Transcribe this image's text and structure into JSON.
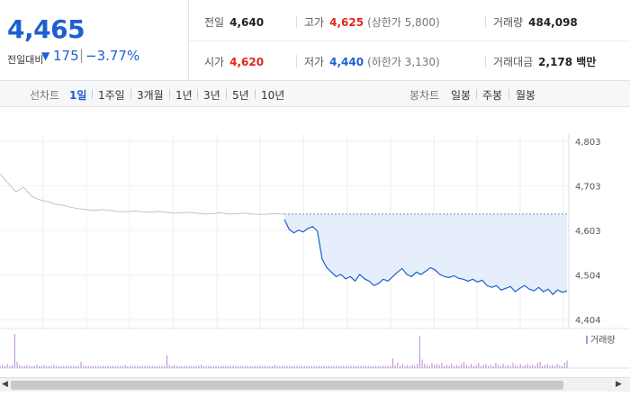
{
  "quote": {
    "price": "4,465",
    "change_label": "전일대비",
    "change_direction_icon": "triangle-down-icon",
    "change_value": "175",
    "change_percent": "−3.77%"
  },
  "stats": {
    "prev_close": {
      "label": "전일",
      "value": "4,640"
    },
    "high": {
      "label": "고가",
      "value": "4,625",
      "sub": "(상한가 5,800)"
    },
    "volume": {
      "label": "거래량",
      "value": "484,098"
    },
    "open": {
      "label": "시가",
      "value": "4,620"
    },
    "low": {
      "label": "저가",
      "value": "4,440",
      "sub": "(하한가 3,130)"
    },
    "trade_amount": {
      "label": "거래대금",
      "value": "2,178 백만"
    }
  },
  "period_bar": {
    "line_chart_label": "선차트",
    "line_periods": [
      "1일",
      "1주일",
      "3개월",
      "1년",
      "3년",
      "5년",
      "10년"
    ],
    "active_period": "1일",
    "candle_chart_label": "봉차트",
    "candle_periods": [
      "일봉",
      "주봉",
      "월봉"
    ]
  },
  "colors": {
    "up": "#e0281c",
    "down": "#1d5fd1",
    "prev_day_line": "#c4c4c4",
    "fill": "#e6eefb",
    "volume_bar": "#b48ad9"
  },
  "chart_data": {
    "type": "line",
    "y_ticks": [
      "4,803",
      "4,703",
      "4,603",
      "4,504",
      "4,404"
    ],
    "ylim": [
      4404,
      4803
    ],
    "reference_price": 4640,
    "series": [
      {
        "values": [
          4730,
          4710,
          4690,
          4700,
          4680,
          4672,
          4668,
          4662,
          4660,
          4655,
          4652,
          4650,
          4648,
          4650,
          4648,
          4646,
          4645,
          4647,
          4645,
          4644,
          4646,
          4644,
          4642,
          4643,
          4644,
          4642,
          4640,
          4641,
          4643,
          4640,
          4641,
          4642,
          4640,
          4639,
          4640,
          4641,
          4640
        ]
      },
      {
        "values": [
          4628,
          4606,
          4598,
          4604,
          4600,
          4608,
          4612,
          4602,
          4540,
          4520,
          4510,
          4500,
          4505,
          4495,
          4500,
          4490,
          4505,
          4495,
          4490,
          4480,
          4485,
          4494,
          4490,
          4500,
          4510,
          4518,
          4505,
          4500,
          4510,
          4505,
          4512,
          4520,
          4515,
          4505,
          4500,
          4498,
          4502,
          4496,
          4494,
          4490,
          4494,
          4488,
          4492,
          4480,
          4476,
          4480,
          4470,
          4474,
          4478,
          4466,
          4474,
          4480,
          4472,
          4468,
          4476,
          4466,
          4472,
          4460,
          4470,
          4465,
          4468
        ]
      }
    ],
    "volume_legend": "거래량",
    "volume_values": [
      2,
      3,
      2,
      4,
      2,
      3,
      32,
      6,
      3,
      2,
      2,
      3,
      2,
      2,
      2,
      3,
      2,
      2,
      3,
      2,
      2,
      2,
      3,
      2,
      2,
      2,
      2,
      2,
      2,
      2,
      2,
      2,
      2,
      6,
      2,
      2,
      2,
      2,
      2,
      2,
      2,
      2,
      2,
      2,
      2,
      2,
      2,
      2,
      2,
      2,
      2,
      3,
      2,
      2,
      2,
      2,
      2,
      2,
      2,
      2,
      2,
      2,
      2,
      2,
      2,
      2,
      2,
      2,
      12,
      3,
      2,
      3,
      2,
      2,
      2,
      2,
      2,
      2,
      2,
      2,
      2,
      2,
      3,
      2,
      2,
      2,
      2,
      2,
      2,
      2,
      2,
      2,
      2,
      2,
      2,
      2,
      2,
      2,
      2,
      2,
      2,
      2,
      2,
      2,
      2,
      2,
      2,
      2,
      2,
      2,
      2,
      2,
      3,
      2,
      2,
      2,
      2,
      2,
      2,
      2,
      2,
      2,
      2,
      2,
      2,
      2,
      2,
      2,
      2,
      2,
      2,
      2,
      2,
      2,
      2,
      2,
      2,
      2,
      2,
      2,
      2,
      2,
      2,
      2,
      2,
      2,
      2,
      2,
      2,
      2,
      2,
      2,
      2,
      2,
      2,
      2,
      2,
      2,
      2,
      2,
      9,
      3,
      5,
      2,
      4,
      2,
      3,
      2,
      3,
      2,
      4,
      30,
      8,
      4,
      3,
      2,
      5,
      3,
      4,
      3,
      5,
      2,
      3,
      2,
      4,
      2,
      3,
      2,
      4,
      6,
      3,
      2,
      4,
      2,
      3,
      5,
      2,
      3,
      4,
      2,
      3,
      2,
      5,
      3,
      2,
      4,
      2,
      3,
      2,
      5,
      3,
      2,
      4,
      2,
      3,
      4,
      2,
      3,
      2,
      5,
      6,
      2,
      3,
      4,
      2,
      3,
      2,
      4,
      3,
      2,
      5,
      7
    ]
  }
}
